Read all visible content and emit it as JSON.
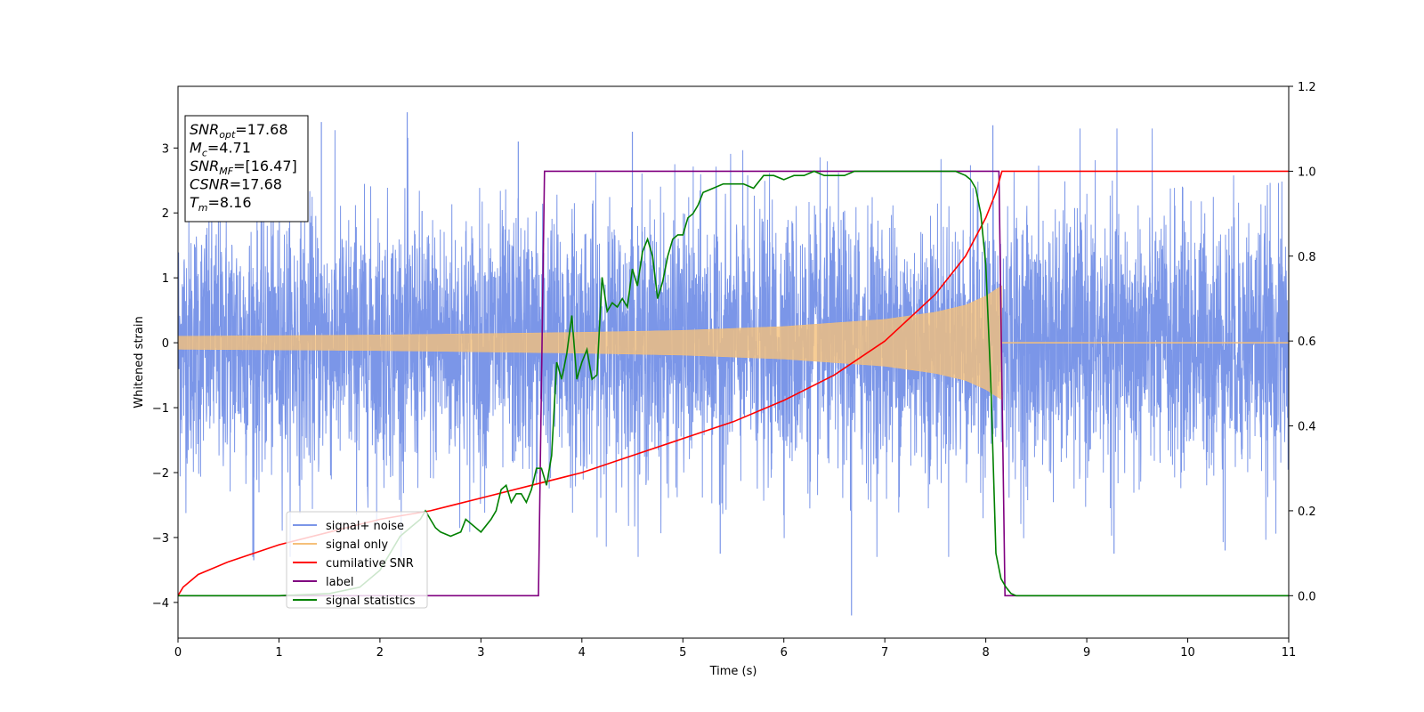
{
  "chart_data": {
    "type": "line",
    "xlabel": "Time (s)",
    "ylabel": "Whitened strain",
    "xlim": [
      0,
      11
    ],
    "ylim": [
      -4.55,
      3.95
    ],
    "y2lim": [
      -0.1,
      1.2
    ],
    "xticks": [
      "0",
      "1",
      "2",
      "3",
      "4",
      "5",
      "6",
      "7",
      "8",
      "9",
      "10",
      "11"
    ],
    "yticks": [
      "−4",
      "−3",
      "−2",
      "−1",
      "0",
      "1",
      "2",
      "3"
    ],
    "y2ticks": [
      "0.0",
      "0.2",
      "0.4",
      "0.6",
      "0.8",
      "1.0",
      "1.2"
    ],
    "grid": false,
    "legend": {
      "position": "lower-left"
    },
    "info_box": [
      {
        "main": "SNR",
        "sub": "opt",
        "value": "=17.68"
      },
      {
        "main": "M",
        "sub": "c",
        "value": "=4.71"
      },
      {
        "main": "SNR",
        "sub": "MF",
        "value": "=[16.47]"
      },
      {
        "main": "CSNR",
        "sub": "",
        "value": "=17.68"
      },
      {
        "main": "T",
        "sub": "m",
        "value": "=8.16"
      }
    ],
    "series": [
      {
        "name": "signal+ noise",
        "color": "#7b96e8",
        "axis": "left",
        "kind": "noise",
        "sigma": 1.0,
        "peak_examples": [
          {
            "x": 0.75,
            "y": -3.35
          },
          {
            "x": 1.42,
            "y": 3.4
          },
          {
            "x": 2.27,
            "y": 3.55
          },
          {
            "x": 3.37,
            "y": 3.1
          },
          {
            "x": 4.5,
            "y": 3.25
          },
          {
            "x": 5.37,
            "y": -3.25
          },
          {
            "x": 6.67,
            "y": -4.2
          },
          {
            "x": 8.07,
            "y": 3.35
          },
          {
            "x": 9.27,
            "y": -3.25
          },
          {
            "x": 10.37,
            "y": -3.2
          }
        ]
      },
      {
        "name": "signal only",
        "color": "#f5c07a",
        "axis": "left",
        "kind": "chirp",
        "envelope": [
          [
            0.0,
            0.1
          ],
          [
            2.0,
            0.12
          ],
          [
            4.0,
            0.16
          ],
          [
            5.0,
            0.19
          ],
          [
            6.0,
            0.25
          ],
          [
            7.0,
            0.36
          ],
          [
            7.5,
            0.47
          ],
          [
            7.8,
            0.58
          ],
          [
            8.0,
            0.72
          ],
          [
            8.1,
            0.82
          ],
          [
            8.16,
            0.88
          ]
        ],
        "end": 8.16
      },
      {
        "name": "cumilative SNR",
        "color": "#ff0000",
        "axis": "right",
        "x": [
          0.0,
          0.05,
          0.2,
          0.5,
          1.0,
          1.5,
          2.0,
          2.5,
          3.0,
          3.5,
          4.0,
          4.5,
          5.0,
          5.5,
          6.0,
          6.5,
          7.0,
          7.5,
          7.8,
          8.0,
          8.1,
          8.16,
          11.0
        ],
        "values": [
          0.0,
          0.02,
          0.05,
          0.08,
          0.12,
          0.15,
          0.18,
          0.2,
          0.23,
          0.26,
          0.29,
          0.33,
          0.37,
          0.41,
          0.46,
          0.52,
          0.6,
          0.71,
          0.8,
          0.89,
          0.95,
          1.0,
          1.0
        ]
      },
      {
        "name": "label",
        "color": "#800080",
        "axis": "right",
        "x": [
          0.0,
          3.57,
          3.63,
          8.13,
          8.19,
          11.0
        ],
        "values": [
          0.0,
          0.0,
          1.0,
          1.0,
          0.0,
          0.0
        ]
      },
      {
        "name": "signal statistics",
        "color": "#008000",
        "axis": "right",
        "x": [
          0.0,
          1.0,
          1.5,
          1.8,
          2.0,
          2.1,
          2.2,
          2.3,
          2.4,
          2.45,
          2.5,
          2.55,
          2.6,
          2.7,
          2.8,
          2.85,
          2.9,
          3.0,
          3.1,
          3.15,
          3.2,
          3.25,
          3.3,
          3.35,
          3.4,
          3.45,
          3.5,
          3.55,
          3.6,
          3.65,
          3.7,
          3.75,
          3.8,
          3.85,
          3.9,
          3.95,
          4.0,
          4.05,
          4.1,
          4.15,
          4.2,
          4.25,
          4.3,
          4.35,
          4.4,
          4.45,
          4.5,
          4.55,
          4.6,
          4.65,
          4.7,
          4.75,
          4.8,
          4.85,
          4.9,
          4.95,
          5.0,
          5.05,
          5.1,
          5.15,
          5.2,
          5.3,
          5.4,
          5.5,
          5.6,
          5.7,
          5.8,
          5.9,
          6.0,
          6.1,
          6.2,
          6.3,
          6.4,
          6.5,
          6.6,
          6.7,
          6.8,
          6.9,
          7.0,
          7.1,
          7.2,
          7.3,
          7.4,
          7.5,
          7.6,
          7.7,
          7.8,
          7.85,
          7.9,
          7.95,
          8.0,
          8.05,
          8.1,
          8.15,
          8.2,
          8.25,
          8.3,
          8.35,
          11.0
        ],
        "values": [
          0.0,
          0.0,
          0.005,
          0.02,
          0.06,
          0.1,
          0.14,
          0.16,
          0.18,
          0.2,
          0.18,
          0.16,
          0.15,
          0.14,
          0.15,
          0.18,
          0.17,
          0.15,
          0.18,
          0.2,
          0.25,
          0.26,
          0.22,
          0.24,
          0.24,
          0.22,
          0.25,
          0.3,
          0.3,
          0.26,
          0.33,
          0.55,
          0.51,
          0.57,
          0.66,
          0.51,
          0.55,
          0.58,
          0.51,
          0.52,
          0.75,
          0.67,
          0.69,
          0.68,
          0.7,
          0.68,
          0.77,
          0.73,
          0.81,
          0.84,
          0.8,
          0.7,
          0.74,
          0.8,
          0.84,
          0.85,
          0.85,
          0.89,
          0.9,
          0.92,
          0.95,
          0.96,
          0.97,
          0.97,
          0.97,
          0.96,
          0.99,
          0.99,
          0.98,
          0.99,
          0.99,
          1.0,
          0.99,
          0.99,
          0.99,
          1.0,
          1.0,
          1.0,
          1.0,
          1.0,
          1.0,
          1.0,
          1.0,
          1.0,
          1.0,
          1.0,
          0.99,
          0.98,
          0.96,
          0.9,
          0.78,
          0.5,
          0.1,
          0.04,
          0.02,
          0.005,
          0.0,
          0.0,
          0.0
        ]
      }
    ]
  }
}
